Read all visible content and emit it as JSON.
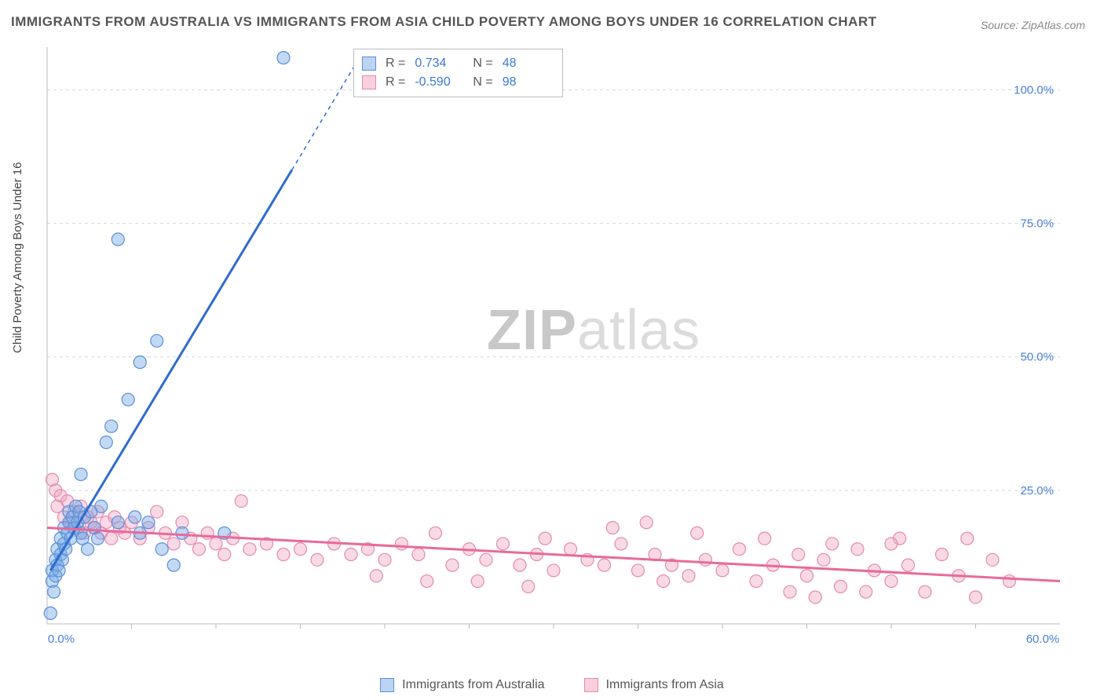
{
  "title": "IMMIGRANTS FROM AUSTRALIA VS IMMIGRANTS FROM ASIA CHILD POVERTY AMONG BOYS UNDER 16 CORRELATION CHART",
  "source": "Source: ZipAtlas.com",
  "ylabel": "Child Poverty Among Boys Under 16",
  "watermark_bold": "ZIP",
  "watermark_light": "atlas",
  "chart": {
    "type": "scatter",
    "xlim": [
      0,
      60
    ],
    "ylim": [
      0,
      108
    ],
    "y_ticks": [
      25,
      50,
      75,
      100
    ],
    "y_tick_labels": [
      "25.0%",
      "50.0%",
      "75.0%",
      "100.0%"
    ],
    "x_ticks": [
      0,
      60
    ],
    "x_tick_labels": [
      "0.0%",
      "60.0%"
    ],
    "x_minor_ticks": [
      5,
      10,
      15,
      20,
      25,
      30,
      35,
      40,
      45,
      50,
      55
    ],
    "background_color": "#ffffff",
    "grid_color": "#d8d8d8",
    "axis_color": "#bbbbbb",
    "tick_label_color": "#4a7fd6",
    "tick_fontsize": 15,
    "marker_radius": 8,
    "series": [
      {
        "name": "Immigrants from Australia",
        "color_fill": "rgba(120,170,230,0.45)",
        "color_stroke": "#5a8fd8",
        "reg_color": "#2f6bd0",
        "reg_width": 3,
        "R": "0.734",
        "N": "48",
        "reg_line": {
          "x1": 0.2,
          "y1": 10,
          "x2": 14.5,
          "y2": 85
        },
        "reg_line_dashed": {
          "x1": 14.5,
          "y1": 85,
          "x2": 18.5,
          "y2": 106
        },
        "points": [
          [
            0.2,
            2
          ],
          [
            0.3,
            8
          ],
          [
            0.3,
            10
          ],
          [
            0.4,
            6
          ],
          [
            0.5,
            9
          ],
          [
            0.5,
            12
          ],
          [
            0.6,
            11
          ],
          [
            0.6,
            14
          ],
          [
            0.7,
            10
          ],
          [
            0.8,
            13
          ],
          [
            0.8,
            16
          ],
          [
            0.9,
            12
          ],
          [
            1.0,
            15
          ],
          [
            1.0,
            18
          ],
          [
            1.1,
            14
          ],
          [
            1.2,
            17
          ],
          [
            1.3,
            19
          ],
          [
            1.3,
            21
          ],
          [
            1.4,
            16
          ],
          [
            1.5,
            20
          ],
          [
            1.6,
            18
          ],
          [
            1.7,
            22
          ],
          [
            1.8,
            19
          ],
          [
            1.9,
            21
          ],
          [
            2.0,
            17
          ],
          [
            2.1,
            16
          ],
          [
            2.2,
            20
          ],
          [
            2.4,
            14
          ],
          [
            2.6,
            21
          ],
          [
            2.8,
            18
          ],
          [
            3.0,
            16
          ],
          [
            3.2,
            22
          ],
          [
            3.5,
            34
          ],
          [
            3.8,
            37
          ],
          [
            4.2,
            19
          ],
          [
            4.8,
            42
          ],
          [
            5.2,
            20
          ],
          [
            5.5,
            17
          ],
          [
            6.0,
            19
          ],
          [
            6.8,
            14
          ],
          [
            5.5,
            49
          ],
          [
            8.0,
            17
          ],
          [
            4.2,
            72
          ],
          [
            6.5,
            53
          ],
          [
            10.5,
            17
          ],
          [
            14.0,
            106
          ],
          [
            2.0,
            28
          ],
          [
            7.5,
            11
          ]
        ]
      },
      {
        "name": "Immigrants from Asia",
        "color_fill": "rgba(240,160,190,0.40)",
        "color_stroke": "#e58ab0",
        "reg_color": "#e86a9a",
        "reg_width": 3,
        "R": "-0.590",
        "N": "98",
        "reg_line": {
          "x1": 0,
          "y1": 18,
          "x2": 60,
          "y2": 8
        },
        "points": [
          [
            0.3,
            27
          ],
          [
            0.5,
            25
          ],
          [
            0.6,
            22
          ],
          [
            0.8,
            24
          ],
          [
            1.0,
            20
          ],
          [
            1.2,
            23
          ],
          [
            1.4,
            19
          ],
          [
            1.6,
            21
          ],
          [
            1.8,
            18
          ],
          [
            2.0,
            22
          ],
          [
            2.2,
            17
          ],
          [
            2.4,
            20
          ],
          [
            2.6,
            19
          ],
          [
            2.8,
            18
          ],
          [
            3.0,
            21
          ],
          [
            3.2,
            17
          ],
          [
            3.5,
            19
          ],
          [
            3.8,
            16
          ],
          [
            4.0,
            20
          ],
          [
            4.3,
            18
          ],
          [
            4.6,
            17
          ],
          [
            5.0,
            19
          ],
          [
            5.5,
            16
          ],
          [
            6.0,
            18
          ],
          [
            6.5,
            21
          ],
          [
            7.0,
            17
          ],
          [
            7.5,
            15
          ],
          [
            8.0,
            19
          ],
          [
            8.5,
            16
          ],
          [
            9.0,
            14
          ],
          [
            9.5,
            17
          ],
          [
            10.0,
            15
          ],
          [
            10.5,
            13
          ],
          [
            11.0,
            16
          ],
          [
            11.5,
            23
          ],
          [
            12.0,
            14
          ],
          [
            13.0,
            15
          ],
          [
            14.0,
            13
          ],
          [
            15.0,
            14
          ],
          [
            16.0,
            12
          ],
          [
            17.0,
            15
          ],
          [
            18.0,
            13
          ],
          [
            19.0,
            14
          ],
          [
            20.0,
            12
          ],
          [
            21.0,
            15
          ],
          [
            22.0,
            13
          ],
          [
            23.0,
            17
          ],
          [
            24.0,
            11
          ],
          [
            25.0,
            14
          ],
          [
            25.5,
            8
          ],
          [
            26.0,
            12
          ],
          [
            27.0,
            15
          ],
          [
            28.0,
            11
          ],
          [
            28.5,
            7
          ],
          [
            29.0,
            13
          ],
          [
            30.0,
            10
          ],
          [
            31.0,
            14
          ],
          [
            32.0,
            12
          ],
          [
            33.0,
            11
          ],
          [
            34.0,
            15
          ],
          [
            35.0,
            10
          ],
          [
            35.5,
            19
          ],
          [
            36.0,
            13
          ],
          [
            37.0,
            11
          ],
          [
            38.0,
            9
          ],
          [
            38.5,
            17
          ],
          [
            39.0,
            12
          ],
          [
            40.0,
            10
          ],
          [
            41.0,
            14
          ],
          [
            42.0,
            8
          ],
          [
            42.5,
            16
          ],
          [
            43.0,
            11
          ],
          [
            44.0,
            6
          ],
          [
            44.5,
            13
          ],
          [
            45.0,
            9
          ],
          [
            46.0,
            12
          ],
          [
            47.0,
            7
          ],
          [
            48.0,
            14
          ],
          [
            49.0,
            10
          ],
          [
            50.0,
            8
          ],
          [
            50.5,
            16
          ],
          [
            51.0,
            11
          ],
          [
            52.0,
            6
          ],
          [
            53.0,
            13
          ],
          [
            54.0,
            9
          ],
          [
            55.0,
            5
          ],
          [
            56.0,
            12
          ],
          [
            57.0,
            8
          ],
          [
            45.5,
            5
          ],
          [
            46.5,
            15
          ],
          [
            33.5,
            18
          ],
          [
            36.5,
            8
          ],
          [
            29.5,
            16
          ],
          [
            22.5,
            8
          ],
          [
            19.5,
            9
          ],
          [
            48.5,
            6
          ],
          [
            50.0,
            15
          ],
          [
            54.5,
            16
          ]
        ]
      }
    ]
  },
  "legend_bottom": {
    "items": [
      "Immigrants from Australia",
      "Immigrants from Asia"
    ]
  }
}
